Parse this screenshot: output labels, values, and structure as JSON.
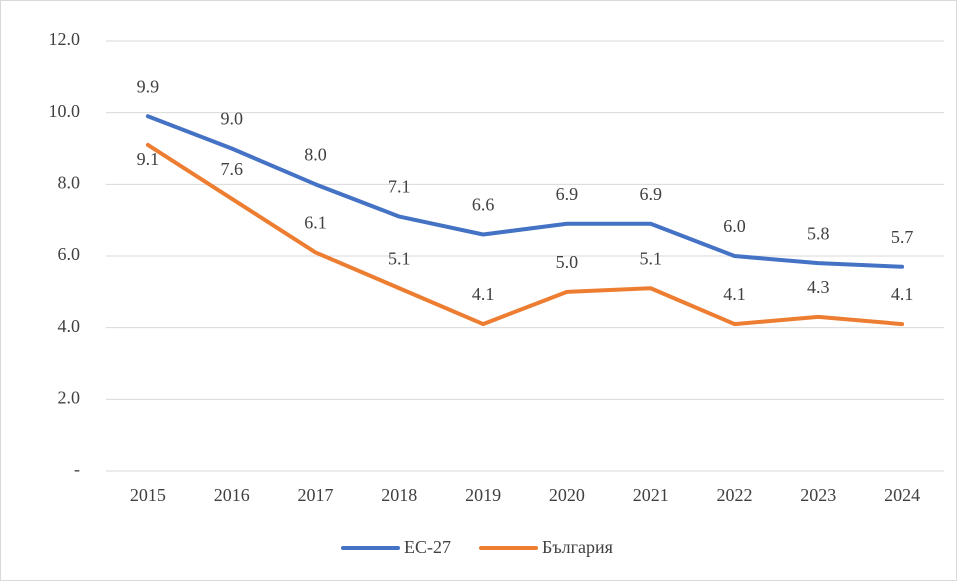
{
  "chart_data": {
    "type": "line",
    "categories": [
      "2015",
      "2016",
      "2017",
      "2018",
      "2019",
      "2020",
      "2021",
      "2022",
      "2023",
      "2024"
    ],
    "series": [
      {
        "name": "EC-27",
        "color": "#4472c4",
        "values": [
          9.9,
          9.0,
          8.0,
          7.1,
          6.6,
          6.9,
          6.9,
          6.0,
          5.8,
          5.7
        ],
        "value_labels": [
          "9.9",
          "9.0",
          "8.0",
          "7.1",
          "6.6",
          "6.9",
          "6.9",
          "6.0",
          "5.8",
          "5.7"
        ]
      },
      {
        "name": "България",
        "color": "#ed7d31",
        "values": [
          9.1,
          7.6,
          6.1,
          5.1,
          4.1,
          5.0,
          5.1,
          4.1,
          4.3,
          4.1
        ],
        "value_labels": [
          "9.1",
          "7.6",
          "6.1",
          "5.1",
          "4.1",
          "5.0",
          "5.1",
          "4.1",
          "4.3",
          "4.1"
        ]
      }
    ],
    "ylim": [
      0,
      12
    ],
    "yticks": [
      {
        "value": 0,
        "label": "-"
      },
      {
        "value": 2,
        "label": "2.0"
      },
      {
        "value": 4,
        "label": "4.0"
      },
      {
        "value": 6,
        "label": "6.0"
      },
      {
        "value": 8,
        "label": "8.0"
      },
      {
        "value": 10,
        "label": "10.0"
      },
      {
        "value": 12,
        "label": "12.0"
      }
    ],
    "grid": true,
    "legend": "bottom"
  }
}
